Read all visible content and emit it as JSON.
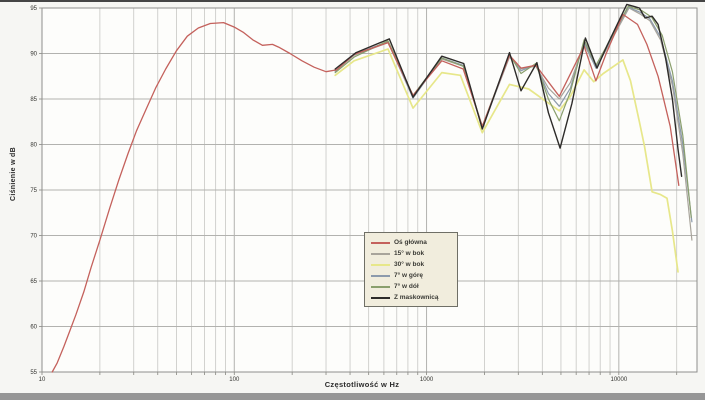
{
  "window": {
    "top_border_color": "#454545",
    "bottom_strip_color": "#969696"
  },
  "chart_data": {
    "type": "line",
    "title": "",
    "xlabel": "Częstotliwość w Hz",
    "ylabel": "Ciśnienie w dB",
    "x_scale": "log",
    "xlim": [
      10,
      25500
    ],
    "ylim": [
      55,
      95
    ],
    "y_ticks": [
      55,
      60,
      65,
      70,
      75,
      80,
      85,
      90,
      95
    ],
    "x_tick_labels": [
      "10",
      "100",
      "1000",
      "10000"
    ],
    "x_tick_values": [
      10,
      100,
      1000,
      10000
    ],
    "grid": true,
    "plot_bg": "#fdfdfb",
    "grid_color": "#c7c7c4",
    "grid_major_color": "#b2b2af",
    "frame_color": "#8f8f8c",
    "legend_position": "inside-bottom-center",
    "series": [
      {
        "name": "Oś główna",
        "color": "#c4615c",
        "points": [
          [
            11.3,
            55
          ],
          [
            12,
            56
          ],
          [
            13,
            57.8
          ],
          [
            14,
            59.6
          ],
          [
            15,
            61.3
          ],
          [
            16.5,
            63.8
          ],
          [
            18,
            66.5
          ],
          [
            20,
            69.5
          ],
          [
            22.5,
            73
          ],
          [
            25,
            76
          ],
          [
            28,
            79
          ],
          [
            31,
            81.5
          ],
          [
            35,
            84
          ],
          [
            39,
            86.2
          ],
          [
            44,
            88.3
          ],
          [
            50,
            90.3
          ],
          [
            57,
            91.9
          ],
          [
            65,
            92.8
          ],
          [
            75,
            93.3
          ],
          [
            88,
            93.4
          ],
          [
            100,
            92.9
          ],
          [
            112,
            92.3
          ],
          [
            125,
            91.5
          ],
          [
            140,
            90.9
          ],
          [
            158,
            91.0
          ],
          [
            170,
            90.7
          ],
          [
            195,
            90.0
          ],
          [
            225,
            89.2
          ],
          [
            260,
            88.5
          ],
          [
            300,
            88.0
          ],
          [
            340,
            88.2
          ],
          [
            420,
            89.9
          ],
          [
            630,
            91.2
          ],
          [
            850,
            85.4
          ],
          [
            1200,
            89.2
          ],
          [
            1550,
            88.3
          ],
          [
            1950,
            82.0
          ],
          [
            2700,
            89.8
          ],
          [
            3100,
            88.4
          ],
          [
            3700,
            88.7
          ],
          [
            4900,
            85.3
          ],
          [
            6600,
            90.8
          ],
          [
            7600,
            87.0
          ],
          [
            8600,
            90.0
          ],
          [
            10500,
            94.3
          ],
          [
            12500,
            93.2
          ],
          [
            14000,
            91.0
          ],
          [
            16000,
            87.5
          ],
          [
            18500,
            82.0
          ],
          [
            20500,
            75.5
          ]
        ]
      },
      {
        "name": "15° w bok",
        "color": "#a8a49b",
        "points": [
          [
            335,
            88.1
          ],
          [
            420,
            89.8
          ],
          [
            630,
            91.2
          ],
          [
            850,
            85.3
          ],
          [
            1200,
            89.4
          ],
          [
            1550,
            88.6
          ],
          [
            1950,
            81.9
          ],
          [
            2700,
            89.6
          ],
          [
            3100,
            88.3
          ],
          [
            3700,
            88.6
          ],
          [
            4300,
            86.2
          ],
          [
            4900,
            85.0
          ],
          [
            5600,
            86.8
          ],
          [
            6600,
            91.0
          ],
          [
            7600,
            88.5
          ],
          [
            8600,
            90.4
          ],
          [
            11300,
            95.0
          ],
          [
            13000,
            94.3
          ],
          [
            14500,
            93.6
          ],
          [
            16500,
            91.5
          ],
          [
            19000,
            86.5
          ],
          [
            21500,
            79.0
          ],
          [
            24000,
            69.5
          ]
        ]
      },
      {
        "name": "30° w bok",
        "color": "#e7e78a",
        "points": [
          [
            335,
            87.6
          ],
          [
            420,
            89.2
          ],
          [
            630,
            90.5
          ],
          [
            850,
            84.0
          ],
          [
            1200,
            87.9
          ],
          [
            1500,
            87.6
          ],
          [
            1950,
            81.3
          ],
          [
            2700,
            86.6
          ],
          [
            3400,
            86.1
          ],
          [
            4200,
            84.7
          ],
          [
            4900,
            83.7
          ],
          [
            5600,
            85.3
          ],
          [
            6600,
            88.2
          ],
          [
            7400,
            86.9
          ],
          [
            8300,
            87.8
          ],
          [
            10500,
            89.3
          ],
          [
            11500,
            87.0
          ],
          [
            12800,
            82.5
          ],
          [
            13600,
            79.8
          ],
          [
            14900,
            74.8
          ],
          [
            16500,
            74.5
          ],
          [
            17800,
            74.1
          ],
          [
            19000,
            70.5
          ],
          [
            20300,
            66.0
          ]
        ]
      },
      {
        "name": "7° w górę",
        "color": "#8c9aac",
        "points": [
          [
            335,
            88.0
          ],
          [
            420,
            89.9
          ],
          [
            630,
            91.3
          ],
          [
            850,
            85.1
          ],
          [
            1200,
            89.5
          ],
          [
            1550,
            88.7
          ],
          [
            1950,
            81.8
          ],
          [
            2700,
            89.8
          ],
          [
            3100,
            88.1
          ],
          [
            3700,
            88.8
          ],
          [
            4300,
            85.6
          ],
          [
            4900,
            84.2
          ],
          [
            5600,
            86.2
          ],
          [
            6600,
            91.3
          ],
          [
            7600,
            88.4
          ],
          [
            8600,
            90.6
          ],
          [
            11200,
            95.1
          ],
          [
            13000,
            94.5
          ],
          [
            14500,
            93.8
          ],
          [
            16500,
            91.8
          ],
          [
            19000,
            87.0
          ],
          [
            21500,
            80.0
          ],
          [
            24000,
            71.5
          ]
        ]
      },
      {
        "name": "7° w dół",
        "color": "#8a9f6d",
        "points": [
          [
            335,
            87.9
          ],
          [
            420,
            89.6
          ],
          [
            630,
            91.4
          ],
          [
            850,
            85.4
          ],
          [
            1200,
            89.5
          ],
          [
            1550,
            88.6
          ],
          [
            1950,
            82.0
          ],
          [
            2700,
            89.9
          ],
          [
            3100,
            87.8
          ],
          [
            3700,
            88.9
          ],
          [
            4300,
            85.0
          ],
          [
            4900,
            82.6
          ],
          [
            5600,
            85.8
          ],
          [
            6600,
            91.5
          ],
          [
            7600,
            88.7
          ],
          [
            8600,
            90.7
          ],
          [
            11200,
            95.2
          ],
          [
            13200,
            94.7
          ],
          [
            14800,
            94.0
          ],
          [
            16800,
            92.0
          ],
          [
            19000,
            88.0
          ],
          [
            21500,
            81.0
          ],
          [
            23800,
            72.0
          ]
        ]
      },
      {
        "name": "Z maskownicą",
        "color": "#2d2b29",
        "points": [
          [
            335,
            88.3
          ],
          [
            430,
            90.1
          ],
          [
            640,
            91.6
          ],
          [
            850,
            85.2
          ],
          [
            1200,
            89.7
          ],
          [
            1560,
            88.9
          ],
          [
            1950,
            81.7
          ],
          [
            2700,
            90.1
          ],
          [
            3100,
            85.9
          ],
          [
            3750,
            89.0
          ],
          [
            4300,
            83.5
          ],
          [
            4950,
            79.6
          ],
          [
            5700,
            84.5
          ],
          [
            6700,
            91.7
          ],
          [
            7700,
            88.4
          ],
          [
            8700,
            90.9
          ],
          [
            11000,
            95.4
          ],
          [
            12800,
            95.0
          ],
          [
            13700,
            93.9
          ],
          [
            14900,
            94.1
          ],
          [
            16000,
            93.2
          ],
          [
            17500,
            89.5
          ],
          [
            19000,
            85.0
          ],
          [
            20300,
            79.5
          ],
          [
            21200,
            76.5
          ]
        ]
      }
    ]
  }
}
